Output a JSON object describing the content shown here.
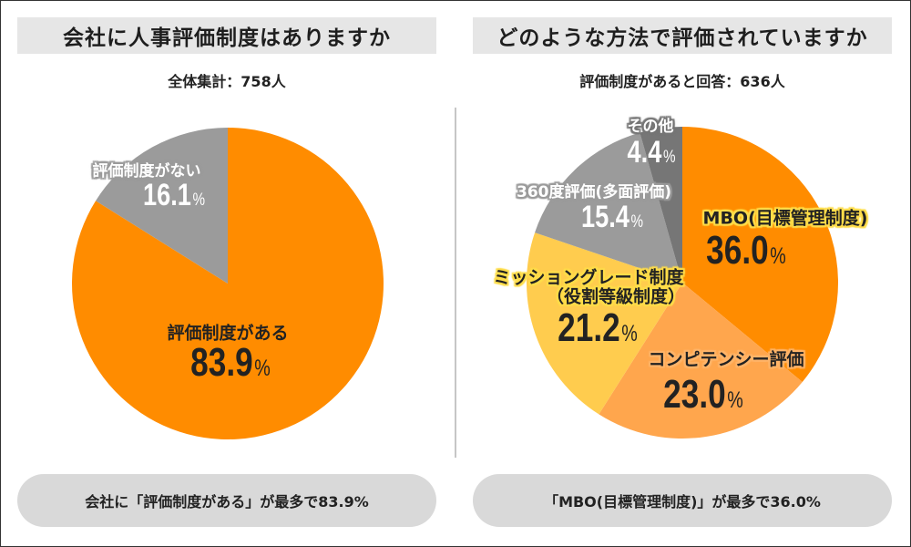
{
  "chart_data": [
    {
      "type": "pie",
      "title": "会社に人事評価制度はありますか",
      "subtitle": "全体集計：758人",
      "unit": "%",
      "slices": [
        {
          "label_lines": [
            "評価制度がある"
          ],
          "value": 83.9,
          "color": "#ff8c00"
        },
        {
          "label_lines": [
            "評価制度がない"
          ],
          "value": 16.1,
          "color": "#9b9b9b"
        }
      ],
      "summary": "会社に「評価制度がある」が最多で83.9%"
    },
    {
      "type": "pie",
      "title": "どのような方法で評価されていますか",
      "subtitle": "評価制度があると回答：636人",
      "unit": "%",
      "slices": [
        {
          "label_lines": [
            "MBO(目標管理制度)"
          ],
          "value": 36.0,
          "color": "#ff8c00"
        },
        {
          "label_lines": [
            "コンピテンシー評価"
          ],
          "value": 23.0,
          "color": "#ffa64d"
        },
        {
          "label_lines": [
            "ミッショングレード制度",
            "（役割等級制度）"
          ],
          "value": 21.2,
          "color": "#ffcc4e"
        },
        {
          "label_lines": [
            "360度評価(多面評価)"
          ],
          "value": 15.4,
          "color": "#9b9b9b"
        },
        {
          "label_lines": [
            "その他"
          ],
          "value": 4.4,
          "color": "#767676"
        }
      ],
      "summary": "「MBO(目標管理制度)」が最多で36.0%"
    }
  ]
}
